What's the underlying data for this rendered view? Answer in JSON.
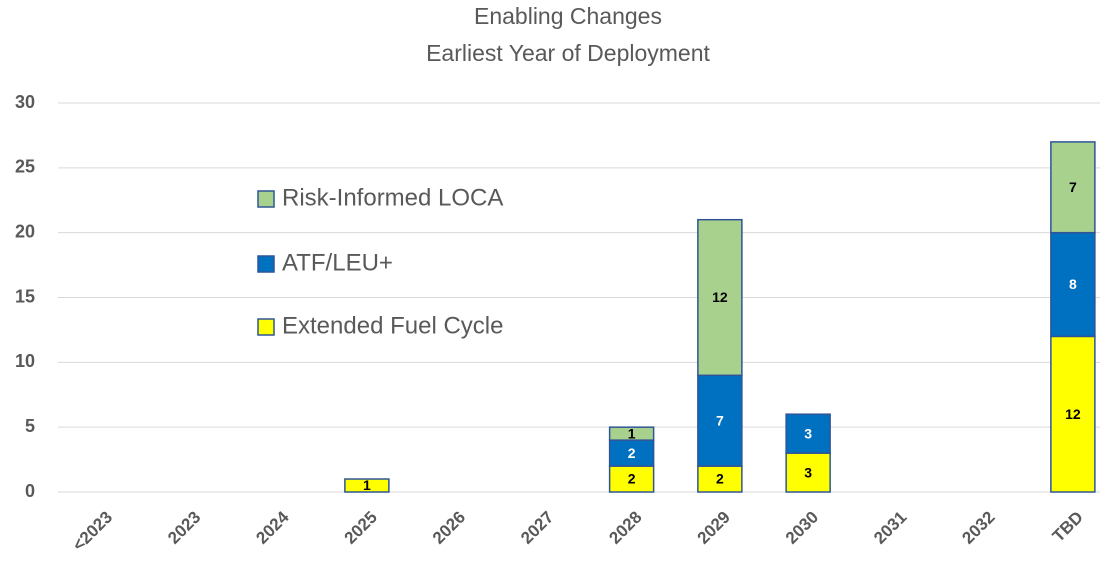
{
  "chart_data": {
    "type": "stacked_bar",
    "title": "Enabling Changes",
    "subtitle": "Earliest Year of Deployment",
    "categories": [
      "<2023",
      "2023",
      "2024",
      "2025",
      "2026",
      "2027",
      "2028",
      "2029",
      "2030",
      "2031",
      "2032",
      "TBD"
    ],
    "series": [
      {
        "name": "Extended Fuel Cycle",
        "color": "#ffff00",
        "values": [
          0,
          0,
          0,
          1,
          0,
          0,
          2,
          2,
          3,
          0,
          0,
          12
        ]
      },
      {
        "name": "ATF/LEU+",
        "color": "#0070c0",
        "values": [
          0,
          0,
          0,
          0,
          0,
          0,
          2,
          7,
          3,
          0,
          0,
          8
        ]
      },
      {
        "name": "Risk-Informed LOCA",
        "color": "#a9d18e",
        "values": [
          0,
          0,
          0,
          0,
          0,
          0,
          1,
          12,
          0,
          0,
          0,
          7
        ]
      }
    ],
    "ylim": [
      0,
      30
    ],
    "yticks": [
      0,
      5,
      10,
      15,
      20,
      25,
      30
    ],
    "grid": true
  }
}
